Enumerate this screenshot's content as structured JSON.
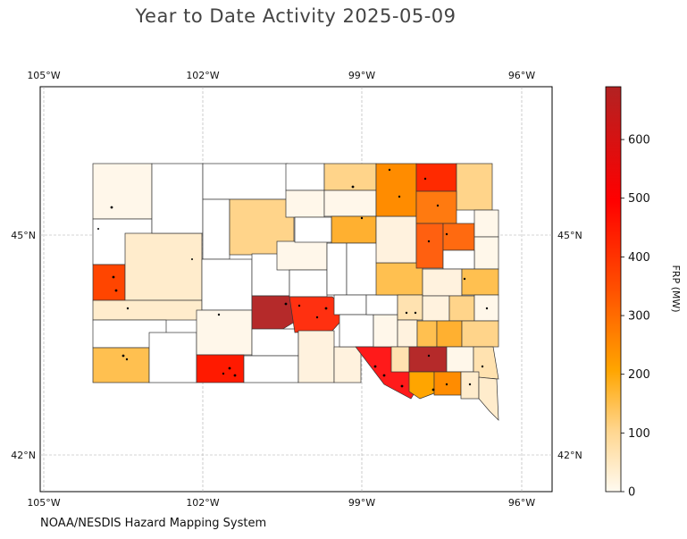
{
  "title": "Year to Date Activity 2025-05-09",
  "footer": "NOAA/NESDIS Hazard Mapping System",
  "map": {
    "region": "South Dakota",
    "longitude_ticks": [
      "105°W",
      "102°W",
      "99°W",
      "96°W"
    ],
    "latitude_ticks": [
      "45°N",
      "42°N"
    ],
    "gridlines": true,
    "fill_colors": {
      "very_high": "#b52a2a",
      "high": "#ff1a00",
      "mid_high": "#ff4500",
      "mid": "#ff8c00",
      "mid_low": "#ffb030",
      "low": "#ffd48a",
      "very_low": "#ffeccc",
      "minimal": "#fff7ea",
      "none": "#ffffff"
    }
  },
  "colorbar": {
    "label": "FRP (MW)",
    "ticks": [
      "0",
      "100",
      "200",
      "300",
      "400",
      "500",
      "600"
    ],
    "range": [
      0,
      690
    ],
    "colors": [
      "#fffaf0",
      "#ffd68f",
      "#ffa500",
      "#ff5000",
      "#ff0000",
      "#b22222"
    ]
  }
}
